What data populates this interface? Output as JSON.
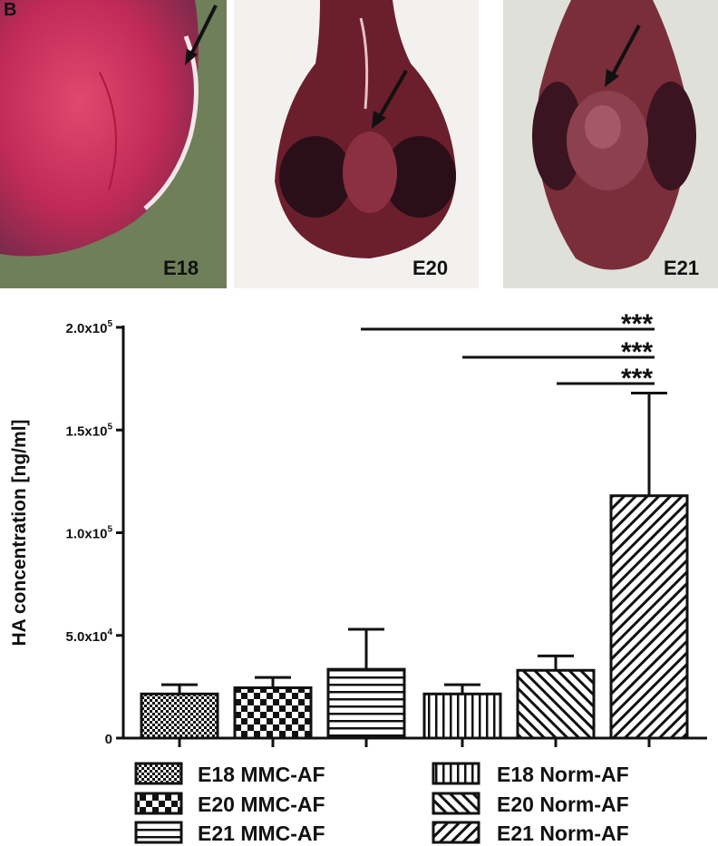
{
  "panel_letter": "B",
  "photos": [
    {
      "label": "E18"
    },
    {
      "label": "E20"
    },
    {
      "label": "E21"
    }
  ],
  "chart_data": {
    "type": "bar",
    "ylabel": "HA concentration [ng/ml]",
    "ylim": [
      0,
      200000
    ],
    "yticks": [
      {
        "value": 0,
        "label": "0"
      },
      {
        "value": 50000,
        "label": "5.0x10^4"
      },
      {
        "value": 100000,
        "label": "1.0x10^5"
      },
      {
        "value": 150000,
        "label": "1.5x10^5"
      },
      {
        "value": 200000,
        "label": "2.0x10^5"
      }
    ],
    "categories": [
      "E18 MMC-AF",
      "E20 MMC-AF",
      "E21 MMC-AF",
      "E18 Norm-AF",
      "E20 Norm-AF",
      "E21 Norm-AF"
    ],
    "values": [
      21500,
      24500,
      33500,
      21500,
      33000,
      118000
    ],
    "errors": [
      4500,
      5000,
      19500,
      4500,
      7000,
      50000
    ],
    "patterns": [
      "fine-check",
      "check",
      "hlines",
      "vlines",
      "diag-up",
      "diag-down"
    ],
    "significance": [
      {
        "from": 2,
        "to": 5,
        "label": "***"
      },
      {
        "from": 4,
        "to": 5,
        "label": "***"
      },
      {
        "from": 5,
        "to": 5,
        "label": "***"
      }
    ],
    "legend": {
      "placement": "bottom",
      "entries": [
        "E18 MMC-AF",
        "E20 MMC-AF",
        "E21 MMC-AF",
        "E18 Norm-AF",
        "E20 Norm-AF",
        "E21 Norm-AF"
      ]
    }
  }
}
